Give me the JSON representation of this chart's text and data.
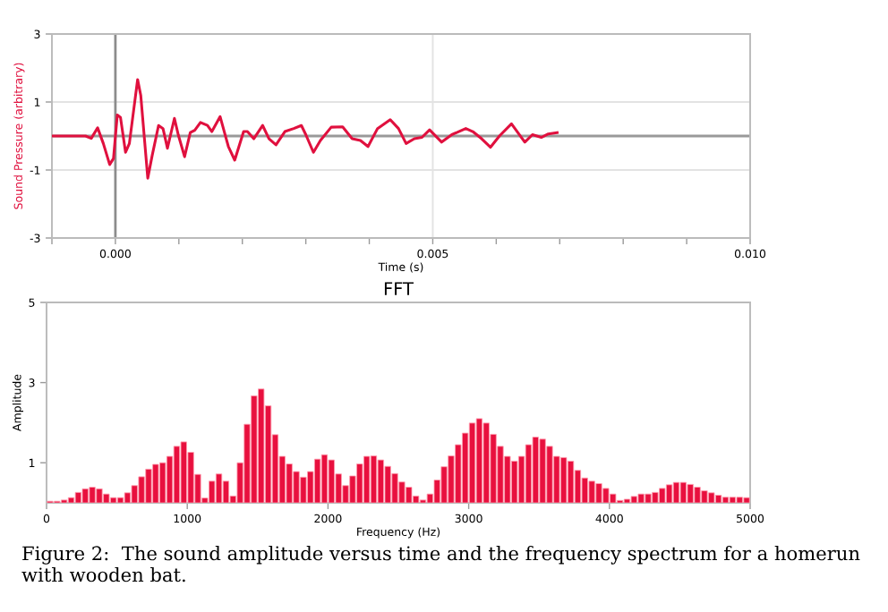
{
  "chart_data": [
    {
      "type": "line",
      "xlabel": "Time (s)",
      "ylabel": "Sound Pressure (arbitrary)",
      "xlim": [
        -0.001,
        0.01
      ],
      "ylim": [
        -3,
        3
      ],
      "xticks": [
        {
          "value": -0.001,
          "label": null
        },
        {
          "value": 0,
          "label": "0.000"
        },
        {
          "value": 0.001,
          "label": null
        },
        {
          "value": 0.002,
          "label": null
        },
        {
          "value": 0.003,
          "label": null
        },
        {
          "value": 0.004,
          "label": null
        },
        {
          "value": 0.005,
          "label": "0.005"
        },
        {
          "value": 0.006,
          "label": null
        },
        {
          "value": 0.007,
          "label": null
        },
        {
          "value": 0.008,
          "label": null
        },
        {
          "value": 0.009,
          "label": null
        },
        {
          "value": 0.01,
          "label": "0.010"
        }
      ],
      "yticks": [
        -3,
        -1,
        1,
        3
      ],
      "grid": true,
      "marker": "none",
      "line_style": "solid",
      "ref_lines": [
        {
          "axis": "x",
          "value": 0,
          "color": "#8c8c8c"
        },
        {
          "axis": "y",
          "value": 0,
          "color": "#999999"
        }
      ],
      "series": [
        {
          "color": "#e0103e",
          "x": [
            -0.00098,
            -0.00047,
            -0.00038,
            -0.00028,
            -0.00019,
            -9e-05,
            -3e-05,
            3e-05,
            8e-05,
            0.00016,
            0.00022,
            0.00035,
            0.0004,
            0.00051,
            0.00058,
            0.00068,
            0.00075,
            0.00082,
            0.00093,
            0.00099,
            0.00109,
            0.00118,
            0.00125,
            0.00134,
            0.00145,
            0.00152,
            0.00165,
            0.00178,
            0.00188,
            0.00202,
            0.00208,
            0.00218,
            0.00232,
            0.00242,
            0.00253,
            0.00267,
            0.00281,
            0.00293,
            0.003,
            0.00312,
            0.00323,
            0.0034,
            0.00358,
            0.00373,
            0.00386,
            0.00398,
            0.00413,
            0.00433,
            0.00446,
            0.00458,
            0.00471,
            0.00483,
            0.00495,
            0.00514,
            0.0053,
            0.00552,
            0.00563,
            0.00577,
            0.00591,
            0.00605,
            0.00624,
            0.00645,
            0.00657,
            0.00671,
            0.00682,
            0.00696
          ],
          "values": [
            0,
            0,
            -0.07,
            0.24,
            -0.22,
            -0.84,
            -0.66,
            0.62,
            0.55,
            -0.48,
            -0.22,
            1.66,
            1.19,
            -1.24,
            -0.57,
            0.31,
            0.22,
            -0.36,
            0.52,
            0.04,
            -0.61,
            0.1,
            0.17,
            0.4,
            0.31,
            0.13,
            0.57,
            -0.31,
            -0.71,
            0.13,
            0.13,
            -0.08,
            0.31,
            -0.08,
            -0.26,
            0.13,
            0.22,
            0.31,
            0.04,
            -0.48,
            -0.13,
            0.26,
            0.27,
            -0.08,
            -0.13,
            -0.31,
            0.22,
            0.48,
            0.22,
            -0.22,
            -0.08,
            -0.04,
            0.18,
            -0.18,
            0.04,
            0.22,
            0.13,
            -0.08,
            -0.33,
            0,
            0.36,
            -0.18,
            0.04,
            -0.04,
            0.06,
            0.1
          ]
        }
      ]
    },
    {
      "type": "bar",
      "title": "FFT",
      "xlabel": "Frequency (Hz)",
      "ylabel": "Amplitude",
      "xlim": [
        0,
        5000
      ],
      "ylim": [
        0,
        5
      ],
      "xticks": [
        0,
        1000,
        2000,
        3000,
        4000,
        5000
      ],
      "yticks": [
        1,
        3,
        5
      ],
      "annotations": [
        "Figure 2:  The sound amplitude versus time and the frequency spectrum for a homerun with wooden bat."
      ],
      "series": [
        {
          "color": "#e8103e",
          "x": [
            25,
            75,
            125,
            175,
            225,
            275,
            325,
            375,
            425,
            475,
            525,
            575,
            625,
            675,
            725,
            775,
            825,
            875,
            925,
            975,
            1025,
            1075,
            1125,
            1175,
            1225,
            1275,
            1325,
            1375,
            1425,
            1475,
            1525,
            1575,
            1625,
            1675,
            1725,
            1775,
            1825,
            1875,
            1925,
            1975,
            2025,
            2075,
            2125,
            2175,
            2225,
            2275,
            2325,
            2375,
            2425,
            2475,
            2525,
            2575,
            2625,
            2675,
            2725,
            2775,
            2825,
            2875,
            2925,
            2975,
            3025,
            3075,
            3125,
            3175,
            3225,
            3275,
            3325,
            3375,
            3425,
            3475,
            3525,
            3575,
            3625,
            3675,
            3725,
            3775,
            3825,
            3875,
            3925,
            3975,
            4025,
            4075,
            4125,
            4175,
            4225,
            4275,
            4325,
            4375,
            4425,
            4475,
            4525,
            4575,
            4625,
            4675,
            4725,
            4775,
            4825,
            4875,
            4925,
            4975
          ],
          "values": [
            0.04,
            0.04,
            0.07,
            0.13,
            0.26,
            0.35,
            0.39,
            0.35,
            0.22,
            0.13,
            0.13,
            0.25,
            0.43,
            0.65,
            0.84,
            0.96,
            1.0,
            1.16,
            1.41,
            1.52,
            1.26,
            0.71,
            0.12,
            0.54,
            0.72,
            0.54,
            0.17,
            1.0,
            1.96,
            2.67,
            2.84,
            2.42,
            1.7,
            1.16,
            0.97,
            0.78,
            0.64,
            0.78,
            1.09,
            1.2,
            1.07,
            0.72,
            0.43,
            0.67,
            0.97,
            1.16,
            1.17,
            1.07,
            0.91,
            0.73,
            0.52,
            0.39,
            0.17,
            0.07,
            0.22,
            0.57,
            0.9,
            1.17,
            1.45,
            1.74,
            1.99,
            2.1,
            1.99,
            1.71,
            1.41,
            1.16,
            1.04,
            1.16,
            1.45,
            1.64,
            1.59,
            1.41,
            1.16,
            1.13,
            1.04,
            0.81,
            0.62,
            0.54,
            0.48,
            0.36,
            0.22,
            0.06,
            0.09,
            0.16,
            0.22,
            0.22,
            0.26,
            0.36,
            0.45,
            0.51,
            0.51,
            0.46,
            0.39,
            0.3,
            0.25,
            0.19,
            0.14,
            0.14,
            0.14,
            0.13
          ]
        }
      ]
    }
  ]
}
